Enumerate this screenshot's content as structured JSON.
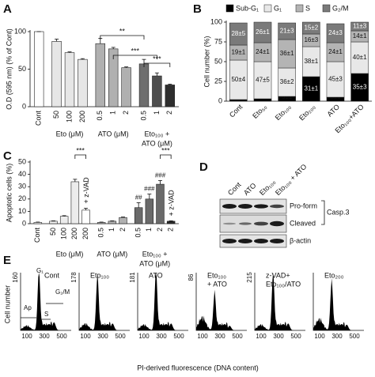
{
  "chart_data": [
    {
      "type": "bar",
      "panel": "A",
      "y_label": "O.D (595 nm) (% of Cont)",
      "categories": [
        "Cont",
        "50",
        "100",
        "200",
        "0.5",
        "1",
        "2",
        "0.5",
        "1",
        "2"
      ],
      "values": [
        100,
        87,
        72,
        63,
        84,
        77,
        52,
        57,
        41,
        29
      ],
      "errors": [
        0,
        3,
        1,
        1,
        7,
        2,
        1,
        6,
        4,
        1
      ],
      "colors": [
        "#ffffff",
        "#e6e6e6",
        "#e6e6e6",
        "#e6e6e6",
        "#b0b0b0",
        "#b0b0b0",
        "#b0b0b0",
        "#6e6e6e",
        "#4e4e4e",
        "#2e2e2e"
      ],
      "group_labels": [
        [
          "Eto (μM)"
        ],
        [
          "ATO (μM)"
        ],
        [
          "Eto₁₀₀ +",
          "ATO (μM)"
        ]
      ],
      "brackets": [
        "**",
        "***",
        "***"
      ],
      "ylim": [
        0,
        100
      ],
      "yticks": [
        0,
        50,
        100
      ]
    },
    {
      "type": "stacked-bar",
      "panel": "B",
      "y_label": "Cell number (%)",
      "categories": [
        "Cont",
        "Eto₅₀",
        "Eto₁₀₀",
        "Eto₂₀₀",
        "ATO",
        "Eto₁₀₀+ATO"
      ],
      "series": [
        {
          "name": "Sub-G₁",
          "color": "#000000",
          "values": [
            2,
            3,
            6,
            31,
            5,
            35
          ],
          "value_labels": [
            "2±1",
            "3±1",
            "6±1",
            "31±1",
            "5±1",
            "35±3"
          ]
        },
        {
          "name": "G₁",
          "color": "#e8e8e8",
          "values": [
            50,
            47,
            36,
            38,
            45,
            40
          ],
          "value_labels": [
            "50±4",
            "47±5",
            "36±2",
            "38±1",
            "45±3",
            "40±1"
          ]
        },
        {
          "name": "S",
          "color": "#b4b4b4",
          "values": [
            19,
            24,
            36,
            16,
            24,
            14
          ],
          "value_labels": [
            "19±1",
            "24±1",
            "36±1",
            "16±3",
            "24±1",
            "14±1"
          ]
        },
        {
          "name": "G₂/M",
          "color": "#7a7a7a",
          "values": [
            28,
            26,
            21,
            15,
            24,
            11
          ],
          "value_labels": [
            "28±5",
            "26±1",
            "21±3",
            "15±2",
            "24±3",
            "11±3"
          ]
        }
      ],
      "ylim": [
        0,
        100
      ],
      "yticks": [
        0,
        25,
        50,
        75,
        100
      ]
    },
    {
      "type": "bar",
      "panel": "C",
      "y_label": "Apoptotic cells (%)",
      "categories": [
        "Cont",
        "50",
        "100",
        "200",
        "200",
        "0.5",
        "1",
        "2",
        "0.5",
        "1",
        "2",
        "2"
      ],
      "values": [
        1,
        2,
        6,
        34,
        11,
        1,
        2,
        5,
        13,
        20,
        32,
        2
      ],
      "errors": [
        0.3,
        0.3,
        0.5,
        2,
        1.5,
        0.3,
        0.3,
        0.4,
        4,
        4,
        3,
        0.3
      ],
      "colors": [
        "#ffffff",
        "#ececec",
        "#ececec",
        "#ececec",
        "#ffffff",
        "#b0b0b0",
        "#b0b0b0",
        "#b0b0b0",
        "#6a6a6a",
        "#6a6a6a",
        "#6a6a6a",
        "#2a2a2a"
      ],
      "bar_annotations": [
        null,
        null,
        null,
        null,
        null,
        null,
        null,
        null,
        "##",
        "###",
        "###",
        null
      ],
      "zvad_label": "+ z-VAD",
      "group_labels": [
        [
          "Eto (μM)"
        ],
        [
          "ATO (μM)"
        ],
        [
          "Eto₁₀₀ +",
          "ATO (μM)"
        ]
      ],
      "brackets": [
        "***",
        "***"
      ],
      "ylim": [
        0,
        50
      ],
      "yticks": [
        0,
        10,
        20,
        30,
        40,
        50
      ]
    }
  ],
  "blot": {
    "panel": "D",
    "lanes": [
      "Cont",
      "ATO",
      "Eto₁₀₀",
      "Eto₁₀₀ + ATO"
    ],
    "bands": [
      "Pro-form",
      "Cleaved",
      "β-actin"
    ],
    "protein": "Casp.3"
  },
  "flow": {
    "panel": "E",
    "y_title": "Cell number",
    "x_title": "PI-derived fluorescence (DNA content)",
    "x_ticks": [
      "100",
      "300",
      "500"
    ],
    "phases": [
      "Ap",
      "G₁",
      "S",
      "G₂/M"
    ],
    "histograms": [
      {
        "label": [
          "Cont"
        ],
        "y_max": "160"
      },
      {
        "label": [
          "Eto₁₀₀"
        ],
        "y_max": "178"
      },
      {
        "label": [
          "ATO"
        ],
        "y_max": "181"
      },
      {
        "label": [
          "Eto₁₀₀",
          "+ ATO"
        ],
        "y_max": "86"
      },
      {
        "label": [
          "z-VAD+",
          "Eto₁₀₀/ATO"
        ],
        "y_max": "215"
      },
      {
        "label": [
          "Eto₂₀₀"
        ],
        "y_max": null
      }
    ]
  }
}
